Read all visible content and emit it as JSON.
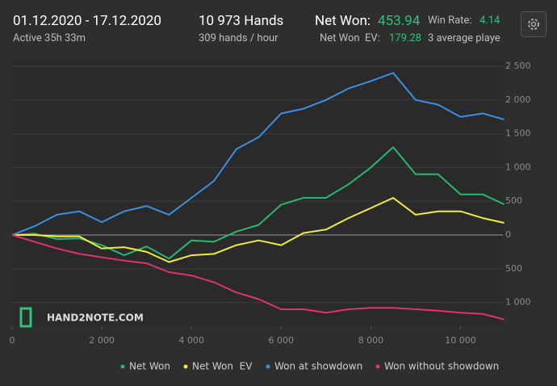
{
  "header": {
    "date_range": "01.12.2020 - 17.12.2020",
    "active": "Active 35h 33m",
    "hands": "10 973 Hands",
    "rate": "309 hands / hour",
    "net_won_label": "Net Won:",
    "net_won": "453.94",
    "net_won_ev_label": "Net Won  EV:",
    "net_won_ev": "179.28",
    "win_rate_label": "Win Rate:",
    "win_rate": "4.14",
    "players": "3 average playe",
    "logo": "HAND2NOTE.COM"
  },
  "chart_data": {
    "type": "line",
    "x": [
      0,
      500,
      1000,
      1500,
      2000,
      2500,
      3000,
      3500,
      4000,
      4500,
      5000,
      5500,
      6000,
      6500,
      7000,
      7500,
      8000,
      8500,
      9000,
      9500,
      10000,
      10500,
      10973
    ],
    "series": [
      {
        "name": "Net Won",
        "color": "#25b86e",
        "values": [
          0,
          20,
          -60,
          -50,
          -150,
          -300,
          -170,
          -350,
          -80,
          -100,
          50,
          150,
          450,
          550,
          550,
          750,
          1000,
          1300,
          900,
          900,
          600,
          600,
          454
        ]
      },
      {
        "name": "Net Won  EV",
        "color": "#f2ea3c",
        "values": [
          0,
          0,
          -20,
          -20,
          -200,
          -180,
          -250,
          -400,
          -300,
          -280,
          -150,
          -80,
          -150,
          30,
          80,
          250,
          400,
          550,
          300,
          350,
          350,
          250,
          179
        ]
      },
      {
        "name": "Won at showdown",
        "color": "#3c8ee0",
        "values": [
          0,
          130,
          300,
          350,
          190,
          350,
          430,
          300,
          550,
          800,
          1270,
          1450,
          1800,
          1870,
          2000,
          2170,
          2280,
          2400,
          2000,
          1930,
          1750,
          1800,
          1710
        ]
      },
      {
        "name": "Won without showdown",
        "color": "#e0336a",
        "values": [
          0,
          -100,
          -200,
          -280,
          -330,
          -380,
          -420,
          -550,
          -600,
          -700,
          -850,
          -950,
          -1100,
          -1100,
          -1150,
          -1100,
          -1080,
          -1080,
          -1100,
          -1120,
          -1150,
          -1170,
          -1250
        ]
      }
    ],
    "xlim": [
      0,
      11000
    ],
    "xticks": [
      0,
      {
        "value": 2000,
        "label": "2 000"
      },
      {
        "value": 4000,
        "label": "4 000"
      },
      {
        "value": 6000,
        "label": "6 000"
      },
      {
        "value": 8000,
        "label": "8 000"
      },
      {
        "value": 10000,
        "label": "10 000"
      }
    ],
    "ylim": [
      -1350,
      2600
    ],
    "yticks": [
      {
        "value": -1000,
        "label": "1 000"
      },
      {
        "value": -500,
        "label": "500"
      },
      0,
      {
        "value": 500,
        "label": "500"
      },
      {
        "value": 1000,
        "label": "1 000"
      },
      {
        "value": 1500,
        "label": "1 500"
      },
      {
        "value": 2000,
        "label": "2 000"
      },
      {
        "value": 2500,
        "label": "2 500"
      }
    ],
    "grid": true
  }
}
